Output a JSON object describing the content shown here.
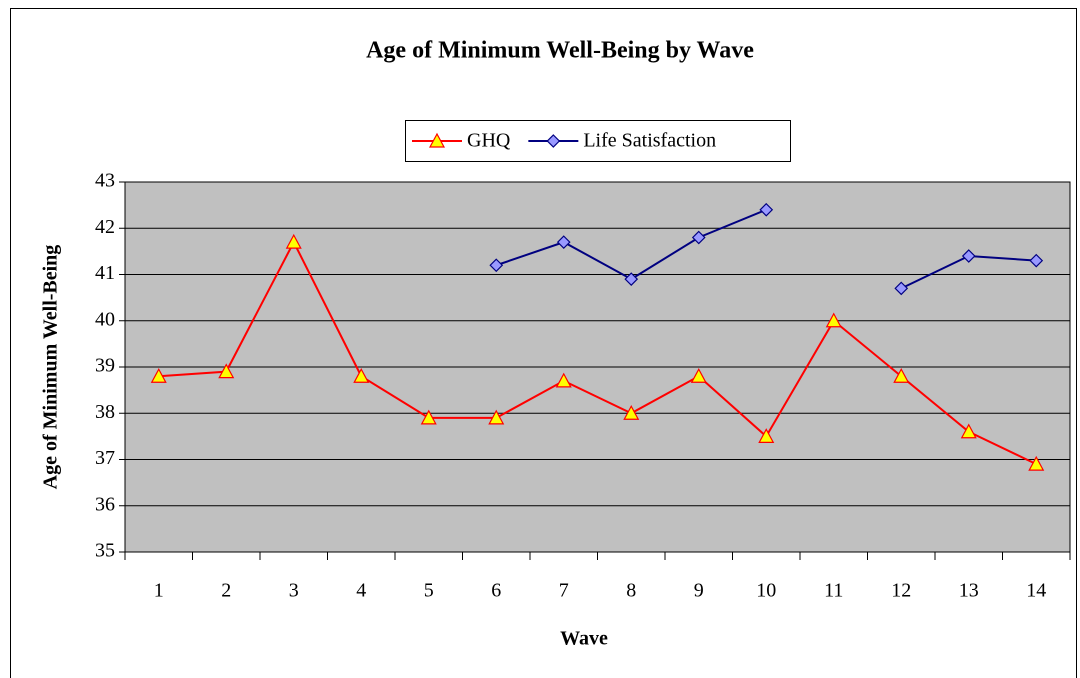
{
  "chart_data": {
    "type": "line",
    "title": "Age of Minimum Well-Being by Wave",
    "x_label": "Wave",
    "y_label": "Age of Minimum Well-Being",
    "categories": [
      1,
      2,
      3,
      4,
      5,
      6,
      7,
      8,
      9,
      10,
      11,
      12,
      13,
      14
    ],
    "series": [
      {
        "name": "GHQ",
        "color": "#ff0000",
        "marker": "triangle",
        "marker_fill": "#ffff00",
        "values": [
          38.8,
          38.9,
          41.7,
          38.8,
          37.9,
          37.9,
          38.7,
          38.0,
          38.8,
          37.5,
          40.0,
          38.8,
          37.6,
          36.9
        ]
      },
      {
        "name": "Life Satisfaction",
        "color": "#000080",
        "marker": "diamond",
        "marker_fill": "#9999ff",
        "values": [
          null,
          null,
          null,
          null,
          null,
          41.2,
          41.7,
          40.9,
          41.8,
          42.4,
          null,
          40.7,
          41.4,
          41.3
        ]
      }
    ],
    "ylim": [
      35,
      43
    ],
    "yticks": [
      35,
      36,
      37,
      38,
      39,
      40,
      41,
      42,
      43
    ],
    "grid": true,
    "plot_background": "#c0c0c0"
  }
}
